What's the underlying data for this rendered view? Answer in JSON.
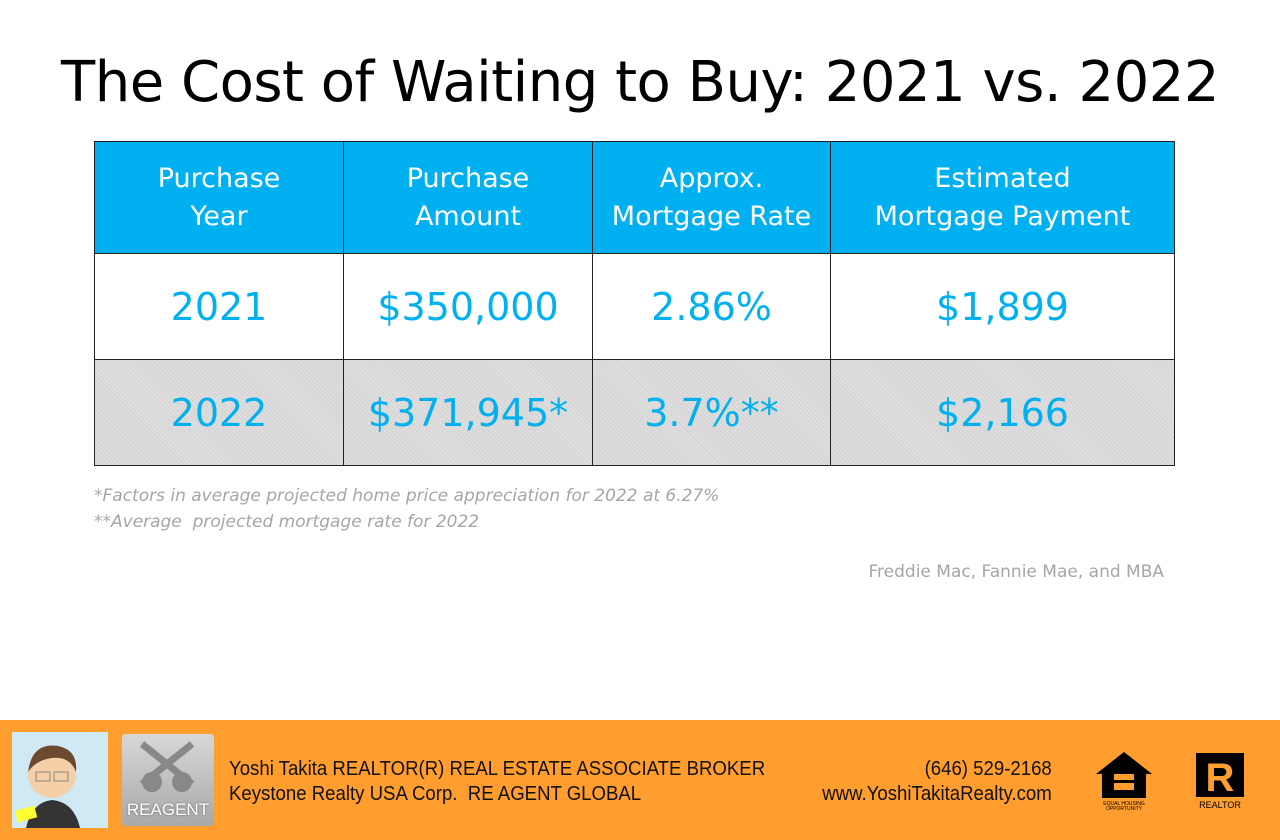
{
  "title": "The Cost of Waiting to Buy: 2021 vs. 2022",
  "table": {
    "headers": [
      [
        "Purchase",
        "Year"
      ],
      [
        "Purchase",
        "Amount"
      ],
      [
        "Approx.",
        "Mortgage Rate"
      ],
      [
        "Estimated",
        "Mortgage Payment"
      ]
    ],
    "rows": [
      [
        "2021",
        "$350,000",
        "2.86%",
        "$1,899"
      ],
      [
        "2022",
        "$371,945*",
        "3.7%**",
        "$2,166"
      ]
    ]
  },
  "footnotes": [
    "*Factors in average projected home price appreciation for 2022 at 6.27%",
    "**Average  projected mortgage rate for 2022"
  ],
  "source": "Freddie Mac, Fannie Mae, and MBA",
  "footer": {
    "line1": "Yoshi Takita REALTOR(R) REAL ESTATE ASSOCIATE BROKER",
    "line2": "Keystone Realty USA Corp.  RE AGENT GLOBAL",
    "phone": "(646) 529-2168",
    "website": "www.YoshiTakitaRealty.com",
    "reagent_logo": "REAGENT",
    "eho_logo": "EQUAL HOUSING OPPORTUNITY",
    "realtor_logo": "REALTOR"
  },
  "colors": {
    "accent": "#00B0F0",
    "footer": "#FF9E2E",
    "muted": "#A6A6A6"
  }
}
